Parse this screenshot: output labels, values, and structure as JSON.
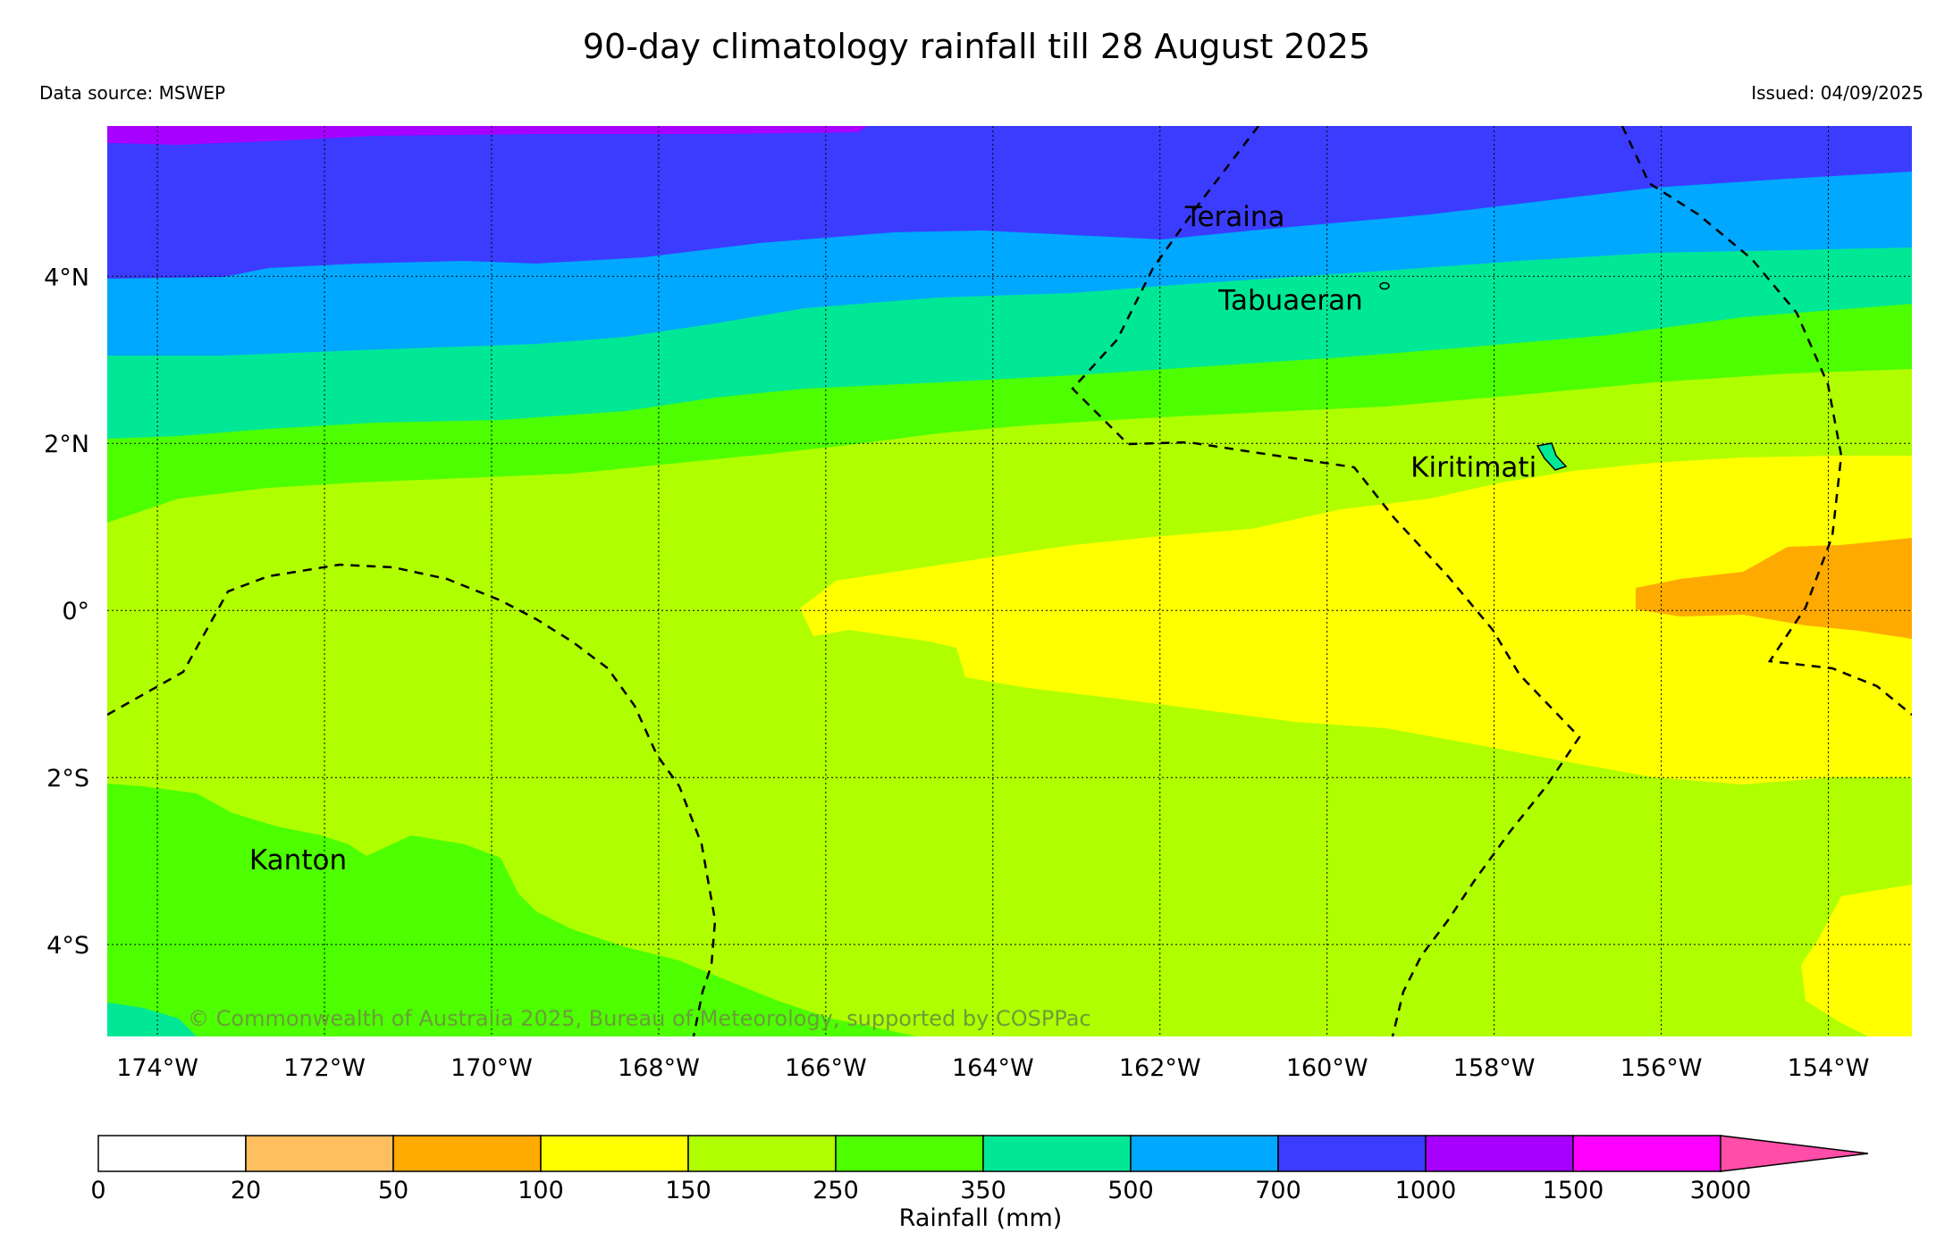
{
  "title": "90-day climatology rainfall till 28 August 2025",
  "source": "Data source: MSWEP",
  "issued": "Issued: 04/09/2025",
  "copyright": "© Commonwealth of Australia 2025, Bureau of Meteorology, supported by COSPPac",
  "map": {
    "lon_range": [
      -174.6,
      -153.0
    ],
    "lat_range": [
      -5.1,
      5.8
    ],
    "x_ticks": [
      {
        "value": -174,
        "label": "174°W"
      },
      {
        "value": -172,
        "label": "172°W"
      },
      {
        "value": -170,
        "label": "170°W"
      },
      {
        "value": -168,
        "label": "168°W"
      },
      {
        "value": -166,
        "label": "166°W"
      },
      {
        "value": -164,
        "label": "164°W"
      },
      {
        "value": -162,
        "label": "162°W"
      },
      {
        "value": -160,
        "label": "160°W"
      },
      {
        "value": -158,
        "label": "158°W"
      },
      {
        "value": -156,
        "label": "156°W"
      },
      {
        "value": -154,
        "label": "154°W"
      }
    ],
    "y_ticks": [
      {
        "value": 4,
        "label": "4°N"
      },
      {
        "value": 2,
        "label": "2°N"
      },
      {
        "value": 0,
        "label": "0°"
      },
      {
        "value": -2,
        "label": "2°S"
      },
      {
        "value": -4,
        "label": "4°S"
      }
    ],
    "places": [
      {
        "name": "Teraina",
        "lon": -161.7,
        "lat": 4.6
      },
      {
        "name": "Tabuaeran",
        "lon": -161.3,
        "lat": 3.6
      },
      {
        "name": "Kiritimati",
        "lon": -159.0,
        "lat": 1.6
      },
      {
        "name": "Kanton",
        "lon": -172.9,
        "lat": -3.1
      }
    ]
  },
  "legend": {
    "label": "Rainfall (mm)",
    "levels": [
      "0",
      "20",
      "50",
      "100",
      "150",
      "250",
      "350",
      "500",
      "700",
      "1000",
      "1500",
      "3000"
    ],
    "colors": [
      "#ffffff",
      "#ffbf5e",
      "#ffaa00",
      "#ffff00",
      "#b0ff00",
      "#4dff00",
      "#00e896",
      "#00a8ff",
      "#3c3cff",
      "#a800ff",
      "#ff00ff"
    ],
    "extend_color": "#ff4da8"
  }
}
